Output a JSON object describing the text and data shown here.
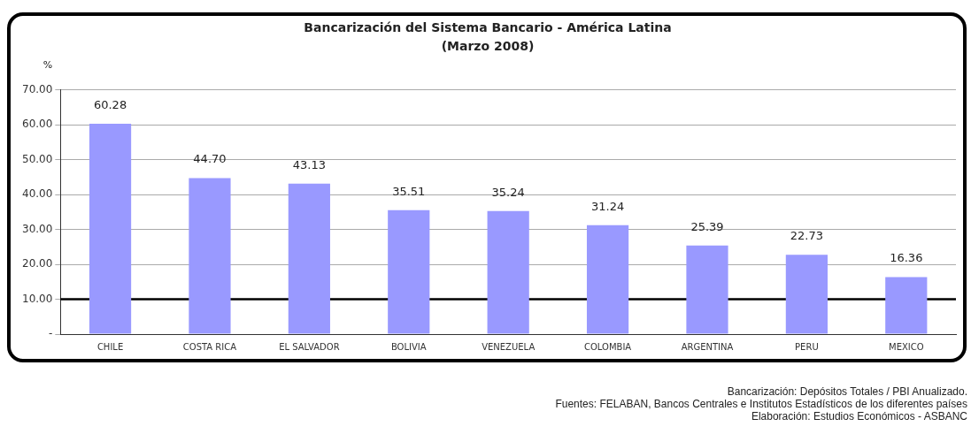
{
  "chart_data": {
    "type": "bar",
    "title": "Bancarización del Sistema Bancario - América Latina",
    "subtitle": "(Marzo 2008)",
    "ylabel": "%",
    "categories": [
      "CHILE",
      "COSTA RICA",
      "EL SALVADOR",
      "BOLIVIA",
      "VENEZUELA",
      "COLOMBIA",
      "ARGENTINA",
      "PERU",
      "MEXICO"
    ],
    "values": [
      60.28,
      44.7,
      43.13,
      35.51,
      35.24,
      31.24,
      25.39,
      22.73,
      16.36
    ],
    "value_labels": [
      "60.28",
      "44.70",
      "43.13",
      "35.51",
      "35.24",
      "31.24",
      "25.39",
      "22.73",
      "16.36"
    ],
    "color": "#9999ff",
    "ylim": [
      0,
      70
    ],
    "yticks": [
      {
        "value": 0,
        "label": "-"
      },
      {
        "value": 10,
        "label": "10.00"
      },
      {
        "value": 20,
        "label": "20.00"
      },
      {
        "value": 30,
        "label": "30.00"
      },
      {
        "value": 40,
        "label": "40.00"
      },
      {
        "value": 50,
        "label": "50.00"
      },
      {
        "value": 60,
        "label": "60.00"
      },
      {
        "value": 70,
        "label": "70.00"
      }
    ],
    "grid": "y",
    "legend": false,
    "ref_lines": [
      {
        "axis": "y",
        "value": 10,
        "color": "#000000"
      }
    ],
    "annotations": [
      "Bancarización: Depósitos Totales / PBI Anualizado.",
      "Fuentes: FELABAN, Bancos Centrales e Institutos Estadísticos de los diferentes países",
      "Elaboración: Estudios Económicos - ASBANC"
    ]
  }
}
